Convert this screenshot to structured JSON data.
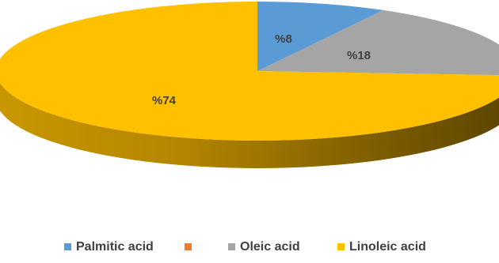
{
  "chart_data": {
    "type": "pie",
    "style": "3d",
    "legend_position": "bottom",
    "labels": [
      "Palmitic acid",
      "",
      "Oleic acid",
      "Linoleic acid"
    ],
    "values": [
      8,
      0,
      18,
      74
    ],
    "data_labels": [
      "%8",
      "",
      "%18",
      "%74"
    ],
    "colors": [
      "#5b9bd5",
      "#ed7d31",
      "#a5a5a5",
      "#ffc000"
    ]
  }
}
